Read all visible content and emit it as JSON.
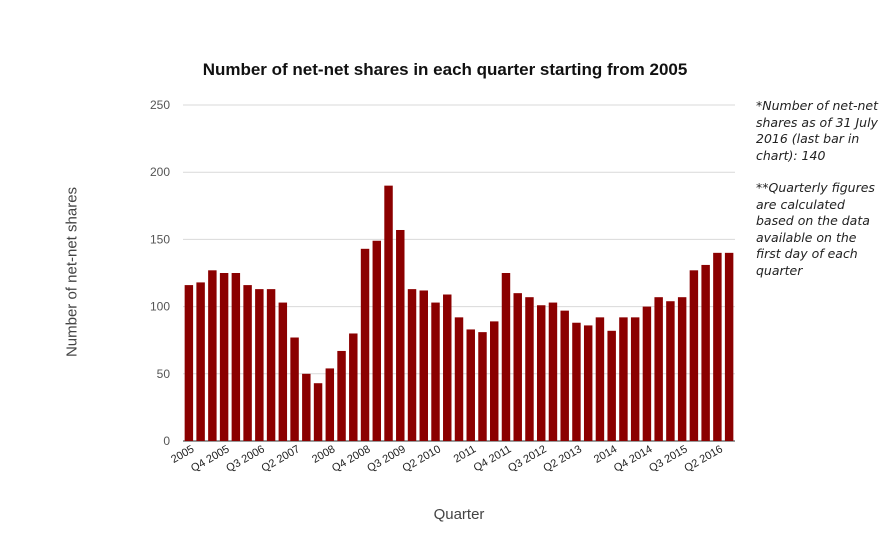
{
  "chart_data": {
    "type": "bar",
    "title": "Number of net-net shares in each quarter starting from 2005",
    "xlabel": "Quarter",
    "ylabel": "Number of net-net shares",
    "ylim": [
      0,
      250
    ],
    "yticks": [
      0,
      50,
      100,
      150,
      200,
      250
    ],
    "grid": true,
    "bar_color": "#8b0000",
    "grid_color": "#d9d9d9",
    "x_tick_labels": [
      "2005",
      "Q4 2005",
      "Q3 2006",
      "Q2 2007",
      "2008",
      "Q4 2008",
      "Q3 2009",
      "Q2 2010",
      "2011",
      "Q4 2011",
      "Q3 2012",
      "Q2 2013",
      "2014",
      "Q4 2014",
      "Q3 2015",
      "Q2 2016"
    ],
    "x_tick_every": 3,
    "values": [
      116,
      118,
      127,
      125,
      125,
      116,
      113,
      113,
      103,
      77,
      50,
      43,
      54,
      67,
      80,
      143,
      149,
      190,
      157,
      113,
      112,
      103,
      109,
      92,
      83,
      81,
      89,
      125,
      110,
      107,
      101,
      103,
      97,
      88,
      86,
      92,
      82,
      92,
      92,
      100,
      107,
      104,
      107,
      127,
      131,
      140,
      140
    ]
  },
  "notes": {
    "note1": "*Number of net-net shares as of 31 July 2016 (last bar in chart): 140",
    "note2": "**Quarterly figures are calculated based on the data available on the first day of each quarter"
  }
}
